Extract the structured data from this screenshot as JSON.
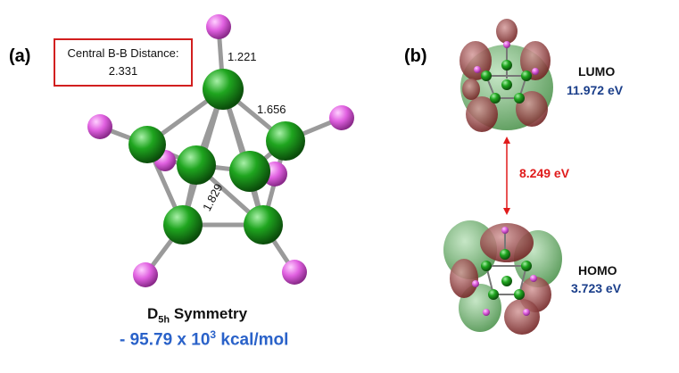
{
  "panel_a": {
    "label": "(a)",
    "distance_box": {
      "line1": "Central B-B Distance:",
      "line2": "2.331"
    },
    "bond_lengths": {
      "b_h": "1.221",
      "b_b_cap": "1.656",
      "b_b_ring": "1.829"
    },
    "symmetry": {
      "prefix": "D",
      "subscript": "5h",
      "suffix": " Symmetry"
    },
    "energy": {
      "prefix": "- 95.79 x 10",
      "exponent": "3",
      "suffix": " kcal/mol"
    }
  },
  "panel_b": {
    "label": "(b)",
    "lumo": {
      "title": "LUMO",
      "energy": "11.972 eV"
    },
    "homo": {
      "title": "HOMO",
      "energy": "3.723 eV"
    },
    "gap": "8.249 eV"
  },
  "colors": {
    "boron": "#1fa51f",
    "hydrogen": "#e060e0",
    "box_border": "#d21f1f",
    "energy_text": "#2a62c9",
    "orbital_energy_text": "#1a3e8a",
    "gap_arrow": "#e01b1b",
    "lobe_green": "#5aa85a",
    "lobe_red": "#8a2a2a"
  }
}
